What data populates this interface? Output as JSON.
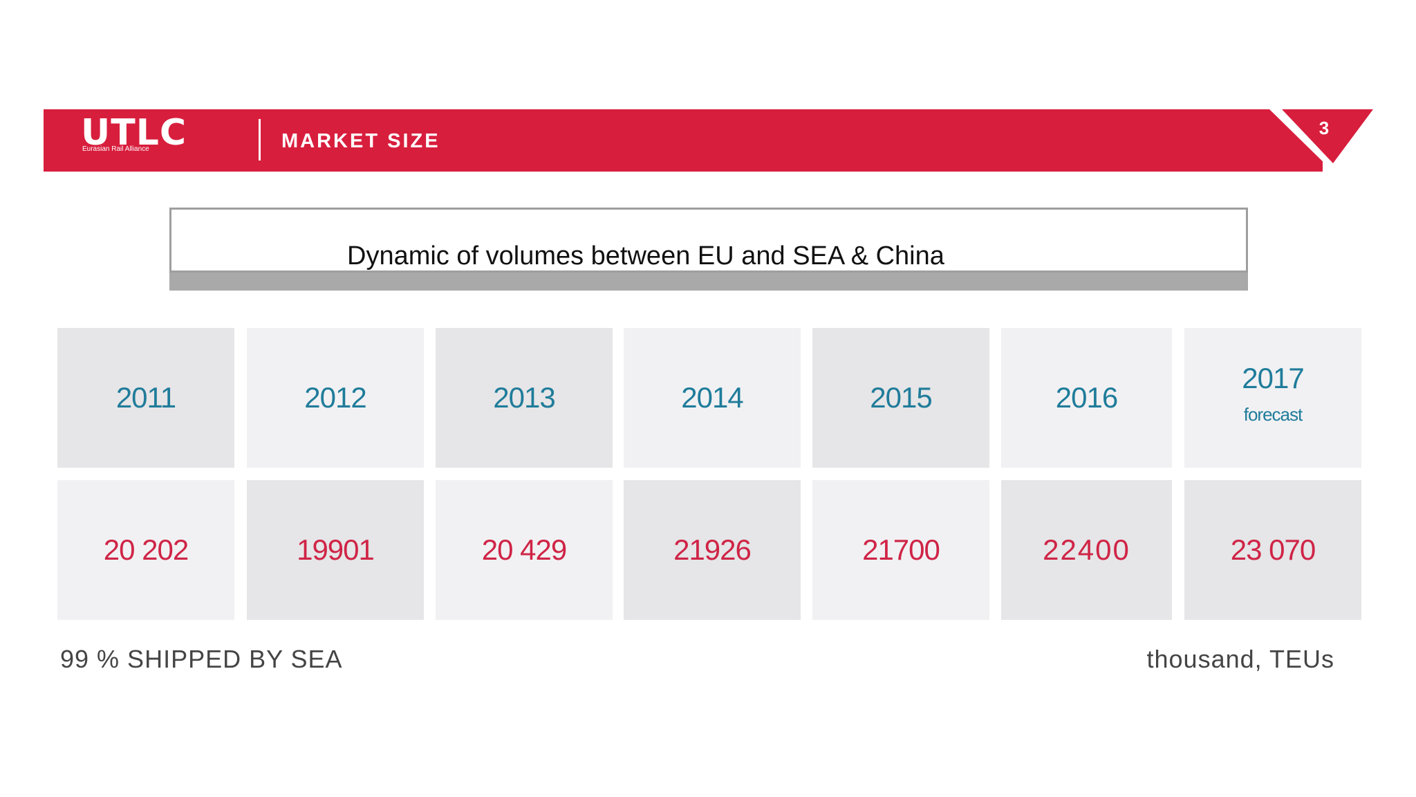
{
  "header": {
    "logo_text": "UTLC",
    "logo_subtitle": "Eurasian Rail Alliance",
    "section_title": "MARKET SIZE",
    "page_number": "3"
  },
  "chart_title": "Dynamic of volumes between EU and SEA & China",
  "chart_data": {
    "type": "table",
    "title": "Dynamic of volumes between EU and SEA & China",
    "categories": [
      "2011",
      "2012",
      "2013",
      "2014",
      "2015",
      "2016",
      "2017"
    ],
    "category_notes": [
      "",
      "",
      "",
      "",
      "",
      "",
      "forecast"
    ],
    "values": [
      20202,
      19901,
      20429,
      21926,
      21700,
      22400,
      23070
    ],
    "value_labels": [
      "20 202",
      "19901",
      "20 429",
      "21926",
      "21700",
      "22400",
      "23 070"
    ],
    "unit": "thousand, TEUs"
  },
  "footer": {
    "left_note": "99 % SHIPPED BY SEA",
    "right_note": "thousand, TEUs"
  },
  "colors": {
    "brand_red": "#d81e3d",
    "year_blue": "#1f7c9a",
    "value_red": "#cf2446",
    "tile_dark": "#e6e5e7",
    "tile_light": "#f1f1f3"
  }
}
